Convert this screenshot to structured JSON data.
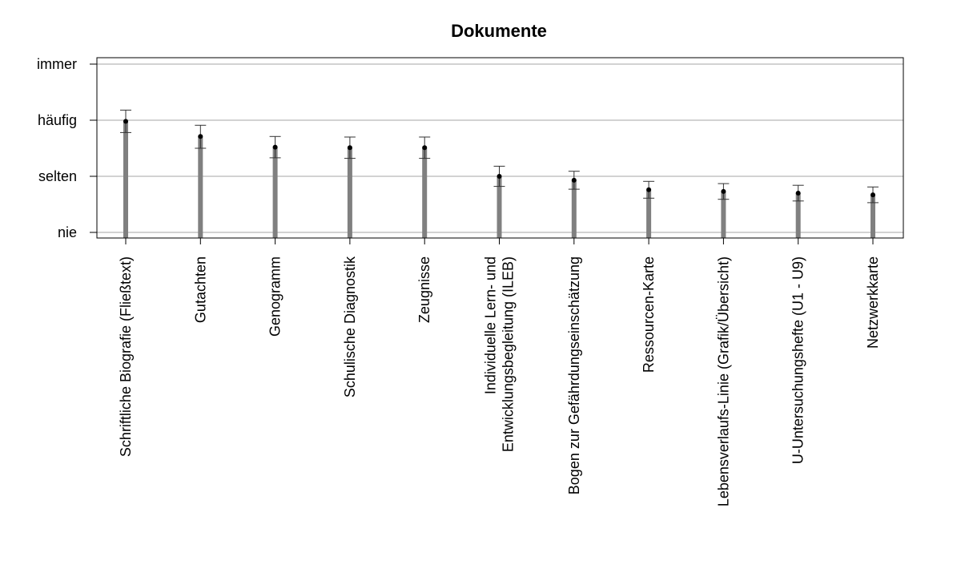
{
  "chart_data": {
    "type": "bar",
    "title": "Dokumente",
    "xlabel": "",
    "ylabel": "",
    "y_ticks": [
      "nie",
      "selten",
      "häufig",
      "immer"
    ],
    "ylim": [
      1,
      4
    ],
    "grid": true,
    "categories": [
      "Schriftliche Biografie (Fließtext)",
      "Gutachten",
      "Genogramm",
      "Schulische Diagnostik",
      "Zeugnisse",
      "Individuelle Lern- und\nEntwicklungsbegleitung (ILEB)",
      "Bogen zur Gefährdungseinschätzung",
      "Ressourcen-Karte",
      "Lebensverlaufs-Linie (Grafik/Übersicht)",
      "U-Untersuchungshefte (U1 - U9)",
      "Netzwerkkarte"
    ],
    "series": [
      {
        "values": [
          2.98,
          2.71,
          2.52,
          2.51,
          2.51,
          2.0,
          1.93,
          1.76,
          1.73,
          1.7,
          1.67
        ],
        "error_low": [
          2.78,
          2.5,
          2.33,
          2.32,
          2.32,
          1.82,
          1.77,
          1.61,
          1.59,
          1.56,
          1.53
        ],
        "error_high": [
          3.18,
          2.91,
          2.71,
          2.7,
          2.7,
          2.18,
          2.09,
          1.91,
          1.87,
          1.84,
          1.81
        ]
      }
    ],
    "colors": {
      "bar": "#808080",
      "point": "#000000",
      "grid": "#a6a6a6",
      "error": "#333333"
    }
  }
}
